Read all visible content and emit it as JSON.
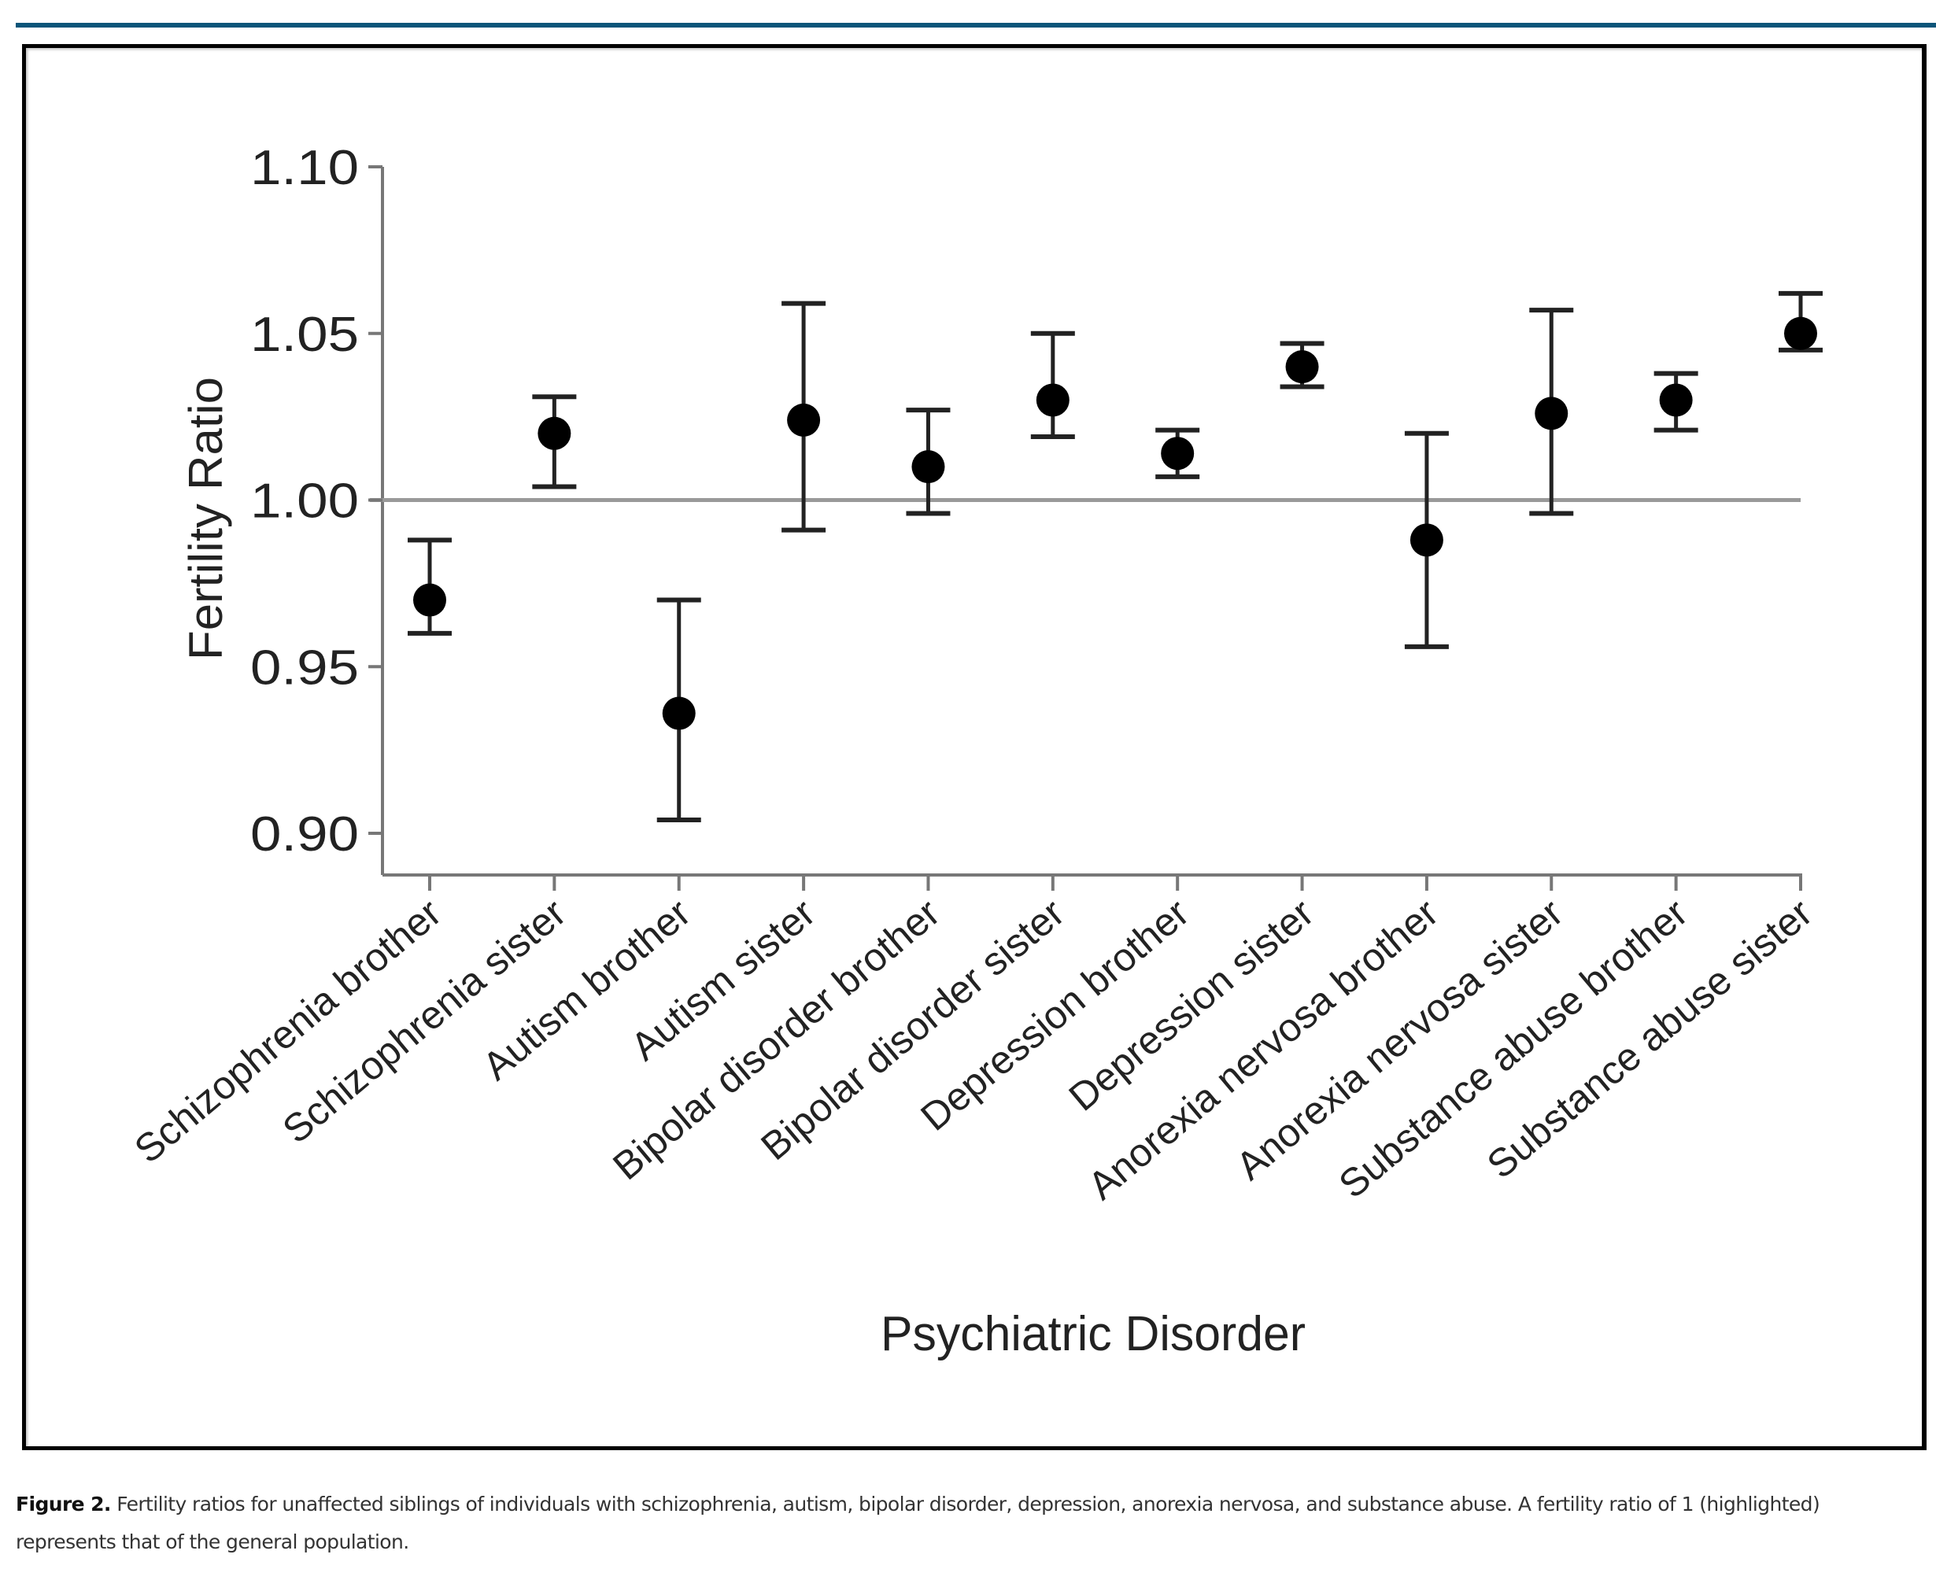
{
  "figure": {
    "label": "Figure 2.",
    "caption": "Fertility ratios for unaffected siblings of individuals with schizophrenia, autism, bipolar disorder, depression, anorexia nervosa, and substance abuse. A fertility ratio of 1 (highlighted) represents that of the general population."
  },
  "colors": {
    "accent_rule": "#0b5579",
    "marker": "#000000",
    "axis": "#777777",
    "reference_line": "#999999"
  },
  "chart_data": {
    "type": "scatter",
    "subtype": "point-with-error-bars",
    "title": "",
    "xlabel": "Psychiatric Disorder",
    "ylabel": "Fertility Ratio",
    "ylim": [
      0.89,
      1.1
    ],
    "yticks": [
      0.9,
      0.95,
      1.0,
      1.05,
      1.1
    ],
    "ytick_labels": [
      "0.90",
      "0.95",
      "1.00",
      "1.05",
      "1.10"
    ],
    "reference_line": {
      "y": 1.0,
      "label": "general population"
    },
    "grid": false,
    "legend": "none",
    "categories": [
      "Schizophrenia brother",
      "Schizophrenia sister",
      "Autism brother",
      "Autism sister",
      "Bipolar disorder brother",
      "Bipolar disorder sister",
      "Depression brother",
      "Depression sister",
      "Anorexia nervosa brother",
      "Anorexia nervosa sister",
      "Substance abuse brother",
      "Substance abuse sister"
    ],
    "series": [
      {
        "name": "Fertility ratio",
        "values": [
          0.97,
          1.02,
          0.936,
          1.024,
          1.01,
          1.03,
          1.014,
          1.04,
          0.988,
          1.026,
          1.03,
          1.05
        ],
        "ci_lower": [
          0.96,
          1.004,
          0.904,
          0.991,
          0.996,
          1.019,
          1.007,
          1.034,
          0.956,
          0.996,
          1.021,
          1.045
        ],
        "ci_upper": [
          0.988,
          1.031,
          0.97,
          1.059,
          1.027,
          1.05,
          1.021,
          1.047,
          1.02,
          1.057,
          1.038,
          1.062
        ]
      }
    ]
  }
}
